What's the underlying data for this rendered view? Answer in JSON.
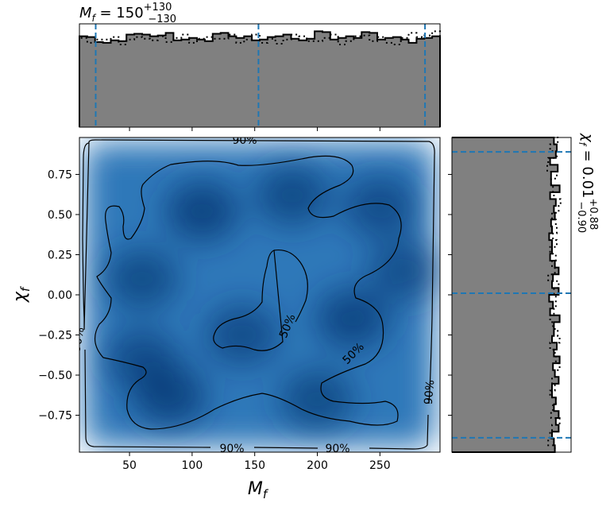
{
  "chart_data": [
    {
      "panel": "joint",
      "type": "heatmap",
      "xlabel_base": "M",
      "xlabel_sub": "f",
      "ylabel_base": "χ",
      "ylabel_sub": "f",
      "xlim": [
        10,
        298
      ],
      "ylim": [
        -0.98,
        0.98
      ],
      "xticks": [
        "50",
        "100",
        "150",
        "200",
        "250"
      ],
      "yticks": [
        "0.75",
        "0.50",
        "0.25",
        "0.00",
        "−0.25",
        "−0.50",
        "−0.75"
      ],
      "contour_labels": [
        "90%",
        "90%",
        "90%",
        "90%",
        "90%",
        "50%",
        "50%"
      ],
      "colormap": "Blues",
      "density_peaks": [
        {
          "x": 108,
          "y": 0.52,
          "w": 1.0
        },
        {
          "x": 82,
          "y": -0.63,
          "w": 1.0
        },
        {
          "x": 228,
          "y": -0.15,
          "w": 0.95
        },
        {
          "x": 180,
          "y": 0.62,
          "w": 0.8
        },
        {
          "x": 250,
          "y": 0.55,
          "w": 0.7
        },
        {
          "x": 60,
          "y": 0.1,
          "w": 0.75
        },
        {
          "x": 140,
          "y": -0.25,
          "w": 0.7
        },
        {
          "x": 60,
          "y": -0.4,
          "w": 0.7
        },
        {
          "x": 200,
          "y": -0.65,
          "w": 0.75
        },
        {
          "x": 270,
          "y": 0.15,
          "w": 0.6
        }
      ]
    },
    {
      "panel": "marginal-x",
      "type": "histogram",
      "title_text": "M_f = 150 (+130/−130)",
      "title_base": "M",
      "title_sub": "f",
      "title_value": "150",
      "title_upper": "+130",
      "title_lower": "−130",
      "xlim": [
        10,
        298
      ],
      "ylim": [
        0,
        1.25
      ],
      "quantiles": [
        23,
        153,
        286
      ],
      "bins_solid": [
        1.1,
        1.09,
        1.03,
        1.02,
        1.05,
        1.04,
        1.12,
        1.13,
        1.12,
        1.1,
        1.11,
        1.14,
        1.05,
        1.06,
        1.08,
        1.06,
        1.04,
        1.13,
        1.14,
        1.1,
        1.08,
        1.1,
        1.05,
        1.06,
        1.09,
        1.1,
        1.12,
        1.07,
        1.05,
        1.07,
        1.16,
        1.15,
        1.06,
        1.08,
        1.1,
        1.08,
        1.15,
        1.14,
        1.06,
        1.08,
        1.09,
        1.06,
        1.02,
        1.07,
        1.08,
        1.1
      ],
      "bins_dotted": [
        1.08,
        1.02,
        1.06,
        1.06,
        1.09,
        1.0,
        1.06,
        1.09,
        1.07,
        1.05,
        1.1,
        1.03,
        1.08,
        1.12,
        1.02,
        1.07,
        1.09,
        1.07,
        1.07,
        1.12,
        1.02,
        1.06,
        1.12,
        1.02,
        1.07,
        1.01,
        1.06,
        1.12,
        1.1,
        1.04,
        1.04,
        1.08,
        1.12,
        1.0,
        1.04,
        1.1,
        1.11,
        1.04,
        1.09,
        1.02,
        1.0,
        1.08,
        1.14,
        1.09,
        1.11,
        1.16
      ]
    },
    {
      "panel": "marginal-y",
      "type": "histogram",
      "title_text": "χ_f = 0.01 (+0.88/−0.90)",
      "title_base": "χ",
      "title_sub": "f",
      "title_value": "0.01",
      "title_upper": "+0.88",
      "title_lower": "−0.90",
      "ylim": [
        -0.98,
        0.98
      ],
      "xlim": [
        0,
        1.25
      ],
      "quantiles": [
        0.89,
        0.01,
        -0.89
      ],
      "bins_solid": [
        1.07,
        1.1,
        1.09,
        1.03,
        1.11,
        1.04,
        1.04,
        1.13,
        1.03,
        1.09,
        1.07,
        1.08,
        1.04,
        1.05,
        1.02,
        1.05,
        1.05,
        1.03,
        1.08,
        1.12,
        1.06,
        1.05,
        1.12,
        1.02,
        1.06,
        1.03,
        1.13,
        1.07,
        1.07,
        1.05,
        1.1,
        1.07,
        1.13,
        1.06,
        1.08,
        1.12,
        1.05,
        1.05,
        1.09,
        1.07,
        1.12,
        1.09,
        1.12,
        1.05,
        1.07,
        1.08
      ],
      "bins_dotted": [
        1.11,
        1.03,
        1.1,
        1.01,
        1.0,
        1.1,
        1.04,
        1.06,
        1.07,
        1.14,
        1.12,
        1.05,
        1.09,
        1.1,
        1.06,
        1.1,
        1.03,
        1.09,
        1.05,
        1.08,
        1.01,
        1.12,
        1.07,
        1.09,
        1.09,
        1.07,
        1.03,
        1.06,
        1.11,
        1.13,
        1.03,
        1.08,
        1.09,
        1.13,
        1.08,
        1.05,
        1.08,
        1.03,
        1.09,
        1.06,
        1.04,
        1.13,
        1.05,
        1.03,
        1.01,
        1.08
      ]
    }
  ]
}
